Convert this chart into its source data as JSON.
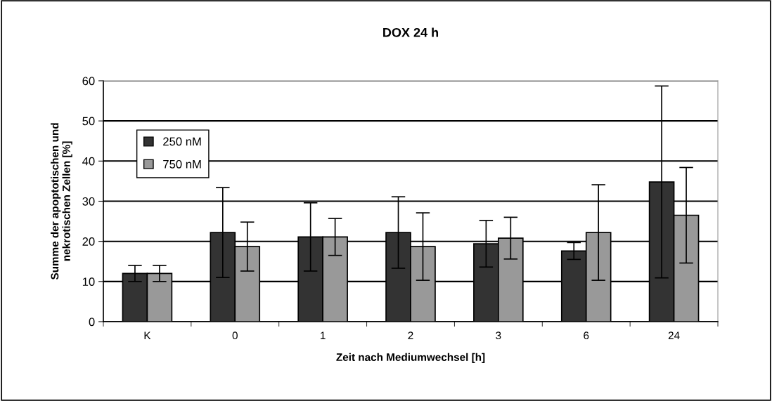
{
  "chart_data": {
    "type": "bar",
    "title": "DOX 24 h",
    "xlabel": "Zeit nach Mediumwechsel [h]",
    "ylabel": "Summe der apoptotischen und\nnekrotischen Zellen [%]",
    "categories": [
      "K",
      "0",
      "1",
      "2",
      "3",
      "6",
      "24"
    ],
    "series": [
      {
        "name": "250 nM",
        "color": "#333333",
        "values": [
          12,
          22.2,
          21.1,
          22.2,
          19.4,
          17.6,
          34.8
        ],
        "errors": [
          2,
          11.2,
          8.5,
          8.9,
          5.8,
          2.1,
          23.9
        ]
      },
      {
        "name": "750 nM",
        "color": "#999999",
        "values": [
          12,
          18.7,
          21.1,
          18.7,
          20.8,
          22.2,
          26.5
        ],
        "errors": [
          2,
          6.1,
          4.6,
          8.4,
          5.2,
          11.9,
          11.9
        ]
      }
    ],
    "ylim": [
      0,
      60
    ],
    "yticks": [
      0,
      10,
      20,
      30,
      40,
      50,
      60
    ],
    "grid": "y",
    "legend": "top left"
  }
}
